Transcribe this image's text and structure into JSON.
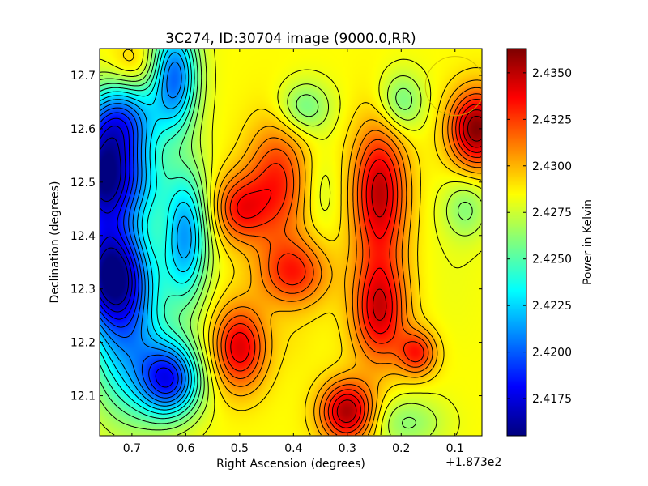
{
  "chart_data": {
    "type": "heatmap",
    "title": "3C274, ID:30704 image (9000.0,RR)",
    "xlabel": "Right Ascension (degrees)",
    "ylabel": "Declination (degrees)",
    "x_offset_label": "+1.873e2",
    "xlim": [
      0.76,
      0.05
    ],
    "ylim": [
      12.025,
      12.75
    ],
    "x_ticks": [
      0.7,
      0.6,
      0.5,
      0.4,
      0.3,
      0.2,
      0.1
    ],
    "x_tick_labels": [
      "0.7",
      "0.6",
      "0.5",
      "0.4",
      "0.3",
      "0.2",
      "0.1"
    ],
    "y_ticks": [
      12.1,
      12.2,
      12.3,
      12.4,
      12.5,
      12.6,
      12.7
    ],
    "y_tick_labels": [
      "12.1",
      "12.2",
      "12.3",
      "12.4",
      "12.5",
      "12.6",
      "12.7"
    ],
    "colorbar": {
      "label": "Power in Kelvin",
      "range": [
        2.4155,
        2.4363
      ],
      "ticks": [
        2.4175,
        2.42,
        2.4225,
        2.425,
        2.4275,
        2.43,
        2.4325,
        2.435
      ],
      "tick_labels": [
        "2.4175",
        "2.4200",
        "2.4225",
        "2.4250",
        "2.4275",
        "2.4300",
        "2.4325",
        "2.4350"
      ],
      "colormap": "jet"
    },
    "baseline": 2.4285,
    "contours": {
      "levels": 22,
      "color": "#000000"
    },
    "features": [
      {
        "x": 0.75,
        "y": 12.51,
        "value": 2.416,
        "sx": 0.05,
        "sy": 0.07
      },
      {
        "x": 0.74,
        "y": 12.33,
        "value": 2.4172,
        "sx": 0.05,
        "sy": 0.07
      },
      {
        "x": 0.72,
        "y": 12.62,
        "value": 2.4215,
        "sx": 0.05,
        "sy": 0.05
      },
      {
        "x": 0.71,
        "y": 12.2,
        "value": 2.4225,
        "sx": 0.05,
        "sy": 0.1
      },
      {
        "x": 0.7,
        "y": 12.72,
        "value": 2.43,
        "sx": 0.03,
        "sy": 0.03
      },
      {
        "x": 0.67,
        "y": 12.5,
        "value": 2.4265,
        "sx": 0.03,
        "sy": 0.05
      },
      {
        "x": 0.63,
        "y": 12.13,
        "value": 2.4192,
        "sx": 0.04,
        "sy": 0.05
      },
      {
        "x": 0.62,
        "y": 12.7,
        "value": 2.4205,
        "sx": 0.03,
        "sy": 0.07
      },
      {
        "x": 0.6,
        "y": 12.4,
        "value": 2.4215,
        "sx": 0.03,
        "sy": 0.09
      },
      {
        "x": 0.5,
        "y": 12.19,
        "value": 2.4343,
        "sx": 0.035,
        "sy": 0.055
      },
      {
        "x": 0.5,
        "y": 12.45,
        "value": 2.433,
        "sx": 0.035,
        "sy": 0.045
      },
      {
        "x": 0.43,
        "y": 12.5,
        "value": 2.433,
        "sx": 0.04,
        "sy": 0.08
      },
      {
        "x": 0.4,
        "y": 12.33,
        "value": 2.433,
        "sx": 0.045,
        "sy": 0.045
      },
      {
        "x": 0.4,
        "y": 12.2,
        "value": 2.4288,
        "sx": 0.03,
        "sy": 0.04
      },
      {
        "x": 0.38,
        "y": 12.64,
        "value": 2.4255,
        "sx": 0.035,
        "sy": 0.035
      },
      {
        "x": 0.3,
        "y": 12.07,
        "value": 2.4355,
        "sx": 0.035,
        "sy": 0.04
      },
      {
        "x": 0.24,
        "y": 12.48,
        "value": 2.435,
        "sx": 0.035,
        "sy": 0.09
      },
      {
        "x": 0.24,
        "y": 12.26,
        "value": 2.4345,
        "sx": 0.035,
        "sy": 0.07
      },
      {
        "x": 0.2,
        "y": 12.65,
        "value": 2.4255,
        "sx": 0.03,
        "sy": 0.04
      },
      {
        "x": 0.17,
        "y": 12.18,
        "value": 2.433,
        "sx": 0.025,
        "sy": 0.03
      },
      {
        "x": 0.19,
        "y": 12.05,
        "value": 2.4262,
        "sx": 0.05,
        "sy": 0.035
      },
      {
        "x": 0.1,
        "y": 12.33,
        "value": 2.4282,
        "sx": 0.04,
        "sy": 0.1
      },
      {
        "x": 0.06,
        "y": 12.6,
        "value": 2.4362,
        "sx": 0.035,
        "sy": 0.05
      },
      {
        "x": 0.08,
        "y": 12.45,
        "value": 2.4262,
        "sx": 0.03,
        "sy": 0.04
      },
      {
        "x": 0.35,
        "y": 12.48,
        "value": 2.4275,
        "sx": 0.025,
        "sy": 0.06
      }
    ],
    "beam_circle": {
      "x": 0.1,
      "y": 12.68,
      "radius_deg": 0.055
    }
  }
}
